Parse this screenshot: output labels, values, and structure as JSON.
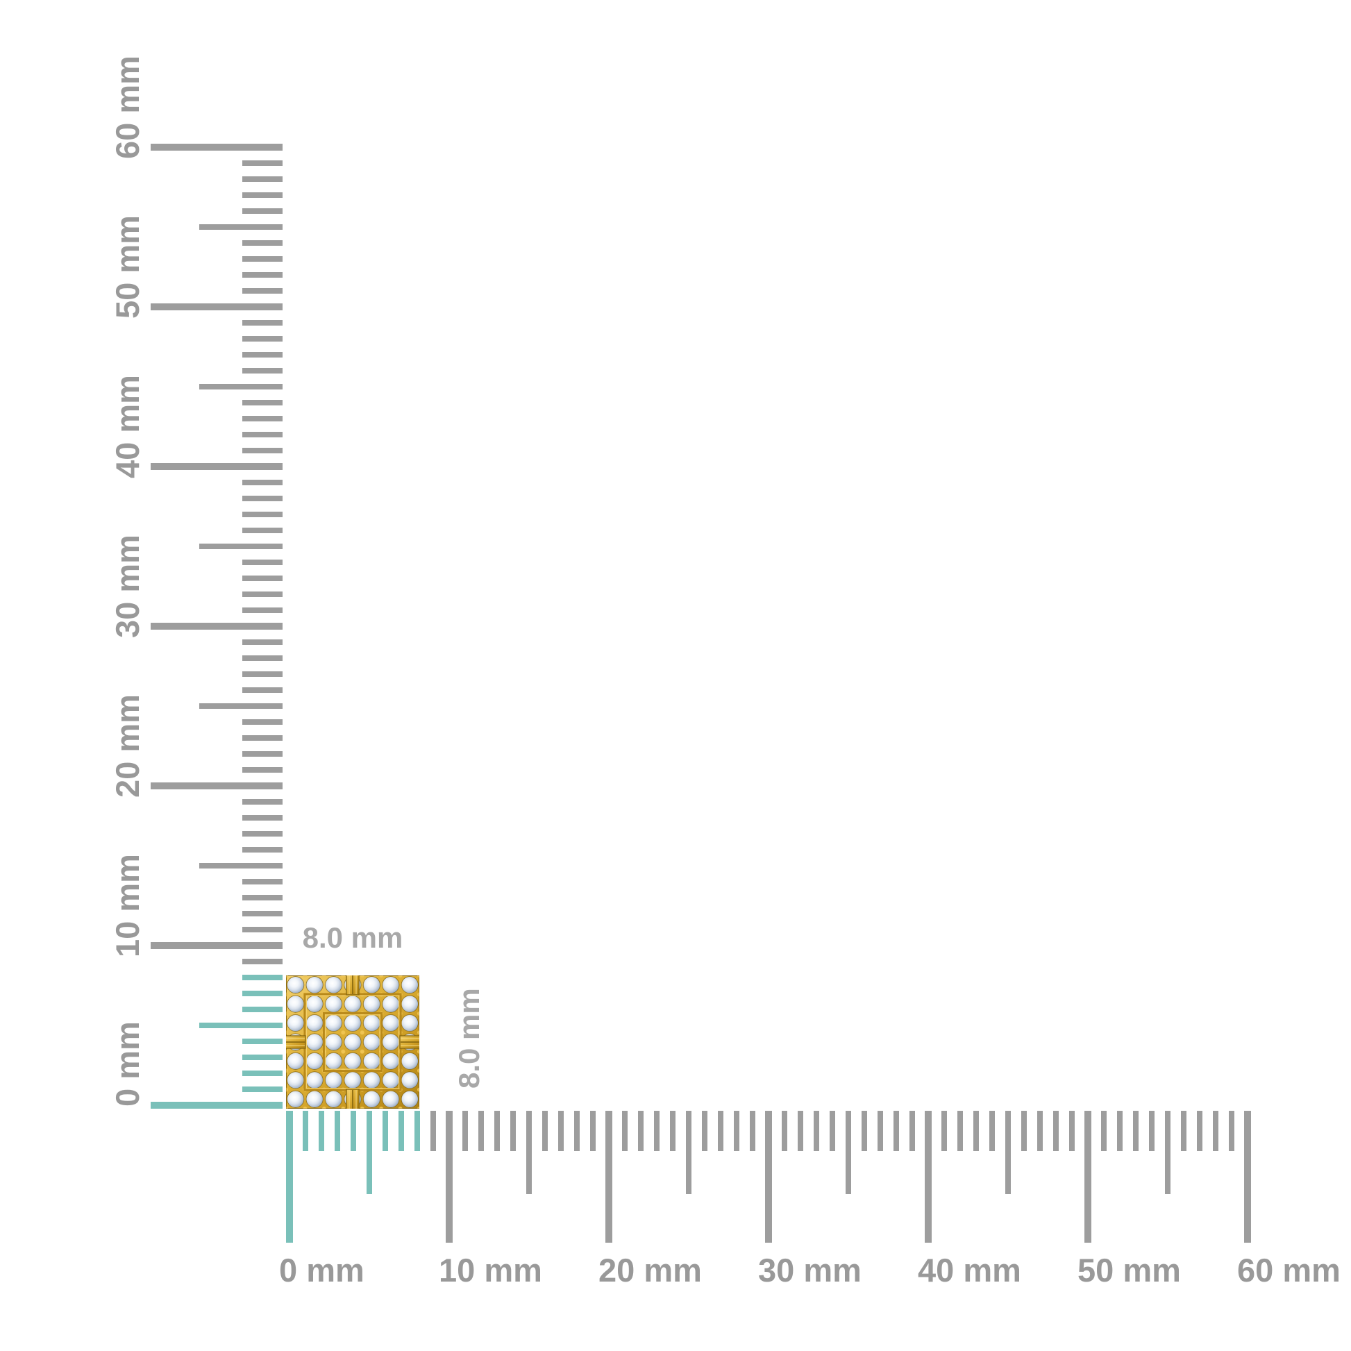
{
  "colors": {
    "background": "#FFFFFF",
    "tick_gray": "#9D9D9D",
    "tick_teal": "#7AC0B9",
    "ruler_label_gray": "#999999",
    "dimension_label_gray": "#A8A8A8",
    "gold_light": "#F2CF6C",
    "gold_mid": "#D9A92F",
    "gold_dark": "#8B6A10",
    "diamond_white": "#FFFFFF",
    "diamond_shade": "#8C9EB6"
  },
  "rulers": {
    "unit": "mm",
    "range_mm": [
      0,
      60
    ],
    "minor_interval_mm": 1,
    "medium_interval_mm": 5,
    "major_interval_mm": 10,
    "highlight_range_mm": [
      0,
      8
    ],
    "horizontal_labels": [
      "0 mm",
      "10 mm",
      "20 mm",
      "30 mm",
      "40 mm",
      "50 mm",
      "60 mm"
    ],
    "vertical_labels": [
      "0 mm",
      "10 mm",
      "20 mm",
      "30 mm",
      "40 mm",
      "50 mm",
      "60 mm"
    ]
  },
  "item": {
    "name": "square pave diamond gold stud",
    "width_label": "8.0 mm",
    "height_label": "8.0 mm"
  }
}
